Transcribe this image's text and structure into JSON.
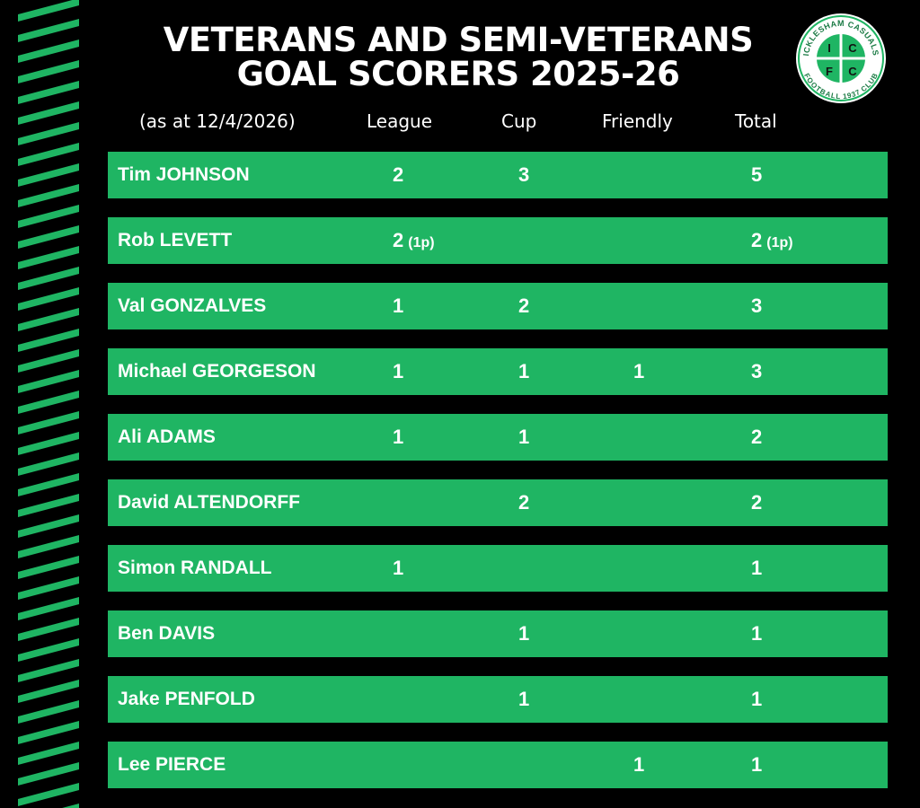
{
  "title": {
    "line1": "VETERANS AND SEMI-VETERANS",
    "line2": "GOAL SCORERS 2025-26"
  },
  "logo": {
    "club_top": "ICKLESHAM CASUALS",
    "club_bottom": "FOOTBALL 1937 CLUB",
    "letters": [
      "I",
      "C",
      "F",
      "C"
    ]
  },
  "header": {
    "date": "(as at 12/4/2026)",
    "league": "League",
    "cup": "Cup",
    "friendly": "Friendly",
    "total": "Total"
  },
  "colors": {
    "accent_green": "#1fb563",
    "background": "#000000"
  },
  "rows": [
    {
      "name": "Tim JOHNSON",
      "league": "2",
      "league_pen": "",
      "cup": "3",
      "friendly": "",
      "total": "5",
      "total_pen": ""
    },
    {
      "name": "Rob LEVETT",
      "league": "2",
      "league_pen": "(1p)",
      "cup": "",
      "friendly": "",
      "total": "2",
      "total_pen": "(1p)"
    },
    {
      "name": "Val GONZALVES",
      "league": "1",
      "league_pen": "",
      "cup": "2",
      "friendly": "",
      "total": "3",
      "total_pen": ""
    },
    {
      "name": "Michael GEORGESON",
      "league": "1",
      "league_pen": "",
      "cup": "1",
      "friendly": "1",
      "total": "3",
      "total_pen": ""
    },
    {
      "name": "Ali ADAMS",
      "league": "1",
      "league_pen": "",
      "cup": "1",
      "friendly": "",
      "total": "2",
      "total_pen": ""
    },
    {
      "name": "David ALTENDORFF",
      "league": "",
      "league_pen": "",
      "cup": "2",
      "friendly": "",
      "total": "2",
      "total_pen": ""
    },
    {
      "name": "Simon RANDALL",
      "league": "1",
      "league_pen": "",
      "cup": "",
      "friendly": "",
      "total": "1",
      "total_pen": ""
    },
    {
      "name": "Ben DAVIS",
      "league": "",
      "league_pen": "",
      "cup": "1",
      "friendly": "",
      "total": "1",
      "total_pen": ""
    },
    {
      "name": "Jake PENFOLD",
      "league": "",
      "league_pen": "",
      "cup": "1",
      "friendly": "",
      "total": "1",
      "total_pen": ""
    },
    {
      "name": "Lee PIERCE",
      "league": "",
      "league_pen": "",
      "cup": "",
      "friendly": "1",
      "total": "1",
      "total_pen": ""
    }
  ]
}
